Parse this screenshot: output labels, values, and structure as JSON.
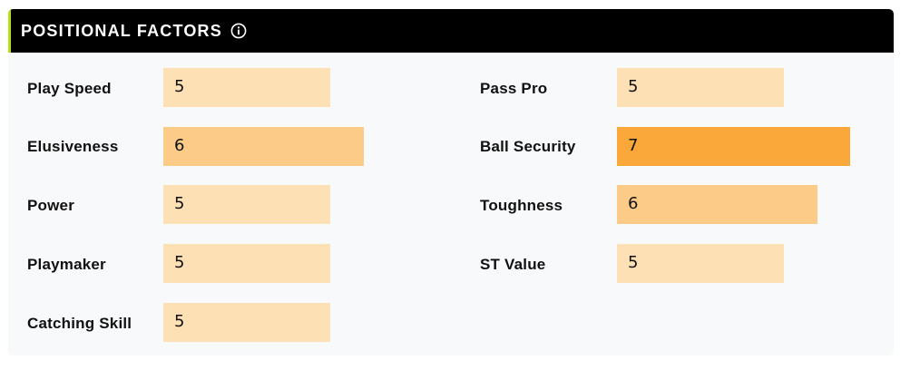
{
  "header": {
    "title": "POSITIONAL FACTORS",
    "info_icon": "info-circle-icon",
    "accent_color": "#b6e01e"
  },
  "scale_max": 10,
  "colors": {
    "level_5": "#fde0b4",
    "level_6": "#fccb87",
    "level_7": "#fba83a"
  },
  "factors_left": [
    {
      "label": "Play Speed",
      "value": "5"
    },
    {
      "label": "Elusiveness",
      "value": "6"
    },
    {
      "label": "Power",
      "value": "5"
    },
    {
      "label": "Playmaker",
      "value": "5"
    },
    {
      "label": "Catching Skill",
      "value": "5"
    }
  ],
  "factors_right": [
    {
      "label": "Pass Pro",
      "value": "5"
    },
    {
      "label": "Ball Security",
      "value": "7"
    },
    {
      "label": "Toughness",
      "value": "6"
    },
    {
      "label": "ST Value",
      "value": "5"
    }
  ]
}
